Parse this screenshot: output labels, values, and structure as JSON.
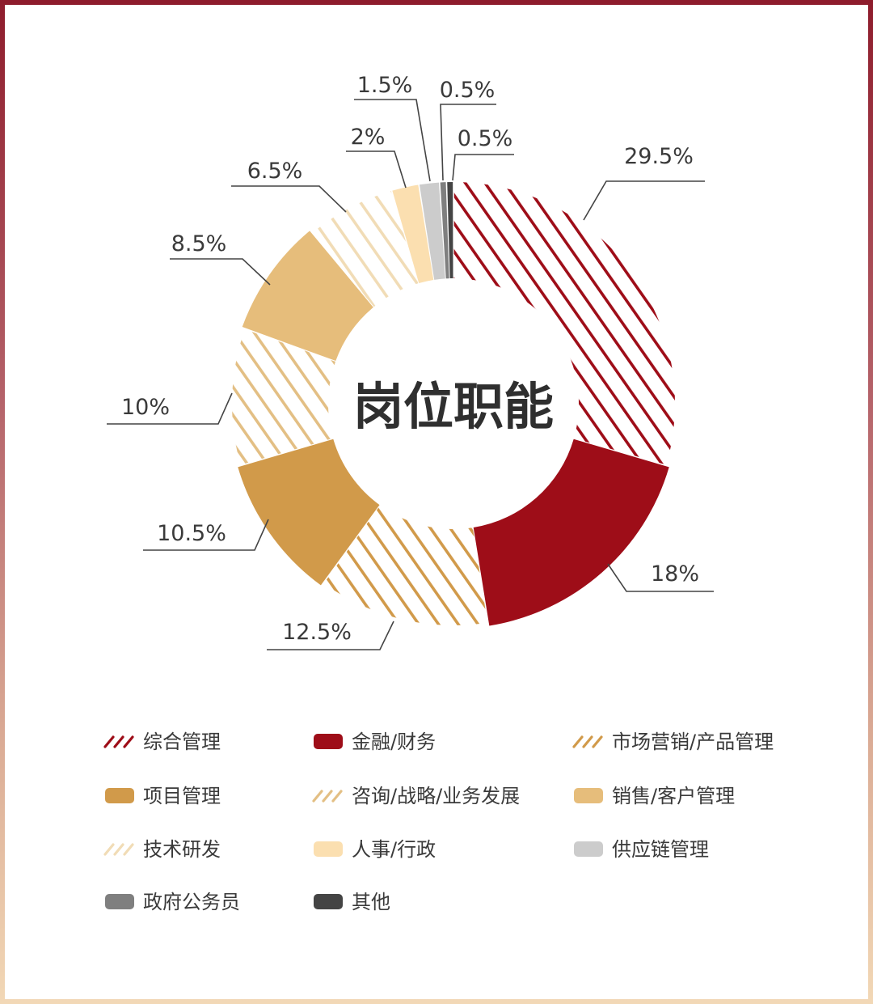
{
  "chart_data": {
    "type": "pie",
    "donut": true,
    "center_label": "岗位职能",
    "slices": [
      {
        "label": "综合管理",
        "value": 29.5,
        "value_label": "29.5%",
        "color": "#9e0d18",
        "pattern": "hatch"
      },
      {
        "label": "金融/财务",
        "value": 18,
        "value_label": "18%",
        "color": "#9e0d18",
        "pattern": "solid"
      },
      {
        "label": "市场营销/产品管理",
        "value": 12.5,
        "value_label": "12.5%",
        "color": "#d19a4a",
        "pattern": "hatch"
      },
      {
        "label": "项目管理",
        "value": 10.5,
        "value_label": "10.5%",
        "color": "#d19a4a",
        "pattern": "solid"
      },
      {
        "label": "咨询/战略/业务发展",
        "value": 10,
        "value_label": "10%",
        "color": "#e3bf84",
        "pattern": "hatch"
      },
      {
        "label": "销售/客户管理",
        "value": 8.5,
        "value_label": "8.5%",
        "color": "#e6bd7b",
        "pattern": "solid"
      },
      {
        "label": "技术研发",
        "value": 6.5,
        "value_label": "6.5%",
        "color": "#f1dcb6",
        "pattern": "hatch"
      },
      {
        "label": "人事/行政",
        "value": 2,
        "value_label": "2%",
        "color": "#fbdfb0",
        "pattern": "solid"
      },
      {
        "label": "供应链管理",
        "value": 1.5,
        "value_label": "1.5%",
        "color": "#cccccc",
        "pattern": "solid"
      },
      {
        "label": "政府公务员",
        "value": 0.5,
        "value_label": "0.5%",
        "color": "#7f7f7f",
        "pattern": "solid"
      },
      {
        "label": "其他",
        "value": 0.5,
        "value_label": "0.5%",
        "color": "#444444",
        "pattern": "solid"
      }
    ],
    "legend_placement": "bottom"
  }
}
